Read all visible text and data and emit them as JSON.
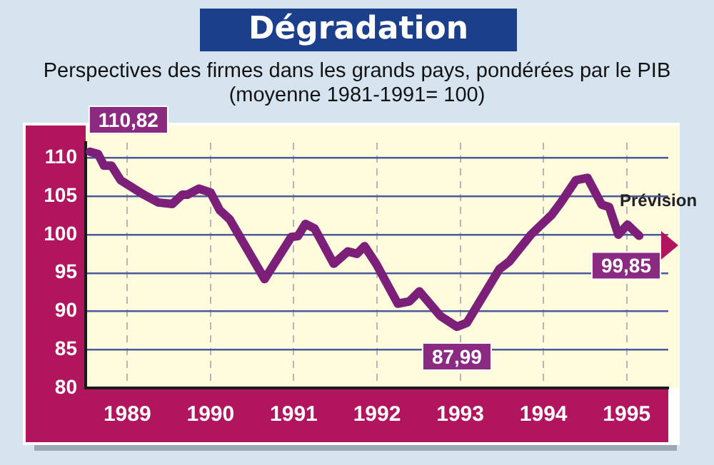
{
  "chart_data": {
    "type": "line",
    "title": "Dégradation",
    "subtitle": "Perspectives des firmes dans les grands pays, pondérées par le PIB\n(moyenne 1981-1991= 100)",
    "x": [
      1989.05,
      1989.15,
      1989.22,
      1989.31,
      1989.42,
      1989.7,
      1989.87,
      1990.04,
      1990.16,
      1990.22,
      1990.36,
      1990.5,
      1990.61,
      1990.73,
      1991.15,
      1991.47,
      1991.55,
      1991.64,
      1991.75,
      1991.98,
      1992.15,
      1992.26,
      1992.35,
      1992.49,
      1992.75,
      1992.89,
      1993.01,
      1993.26,
      1993.46,
      1993.58,
      1993.97,
      1994.09,
      1994.35,
      1994.6,
      1994.71,
      1994.89,
      1995.03,
      1995.2,
      1995.29,
      1995.4,
      1995.51,
      1995.65
    ],
    "series": [
      {
        "color": "#7b1f78",
        "values": [
          110.82,
          110.5,
          109,
          109,
          107.1,
          105.2,
          104.2,
          104,
          105.2,
          105.2,
          106,
          105.5,
          103.2,
          102,
          94.2,
          99.7,
          99.8,
          101.4,
          100.8,
          96.2,
          97.8,
          97.5,
          98.5,
          96.2,
          91,
          91.3,
          92.6,
          89.4,
          87.99,
          88.5,
          95.5,
          96.5,
          100,
          102.6,
          104.2,
          107.1,
          107.4,
          103.9,
          103.6,
          100,
          101.3,
          99.85
        ]
      }
    ],
    "xlim": [
      1989,
      1996
    ],
    "xticks": [
      {
        "value": 1989.5,
        "label": "1989"
      },
      {
        "value": 1990.5,
        "label": "1990"
      },
      {
        "value": 1991.5,
        "label": "1991"
      },
      {
        "value": 1992.5,
        "label": "1992"
      },
      {
        "value": 1993.5,
        "label": "1993"
      },
      {
        "value": 1994.5,
        "label": "1994"
      },
      {
        "value": 1995.5,
        "label": "1995"
      }
    ],
    "ylim": [
      80,
      112
    ],
    "yticks": [
      80,
      85,
      90,
      95,
      100,
      105,
      110
    ],
    "grid": true,
    "legend": false,
    "marker": "none",
    "line_style": "solid",
    "annotations": [
      {
        "text": "110,82",
        "x": 1989.05,
        "y": 110.82
      },
      {
        "text": "87,99",
        "x": 1993.46,
        "y": 87.99
      },
      {
        "text": "99,85",
        "x": 1995.65,
        "y": 99.85
      },
      "Prévision"
    ]
  }
}
